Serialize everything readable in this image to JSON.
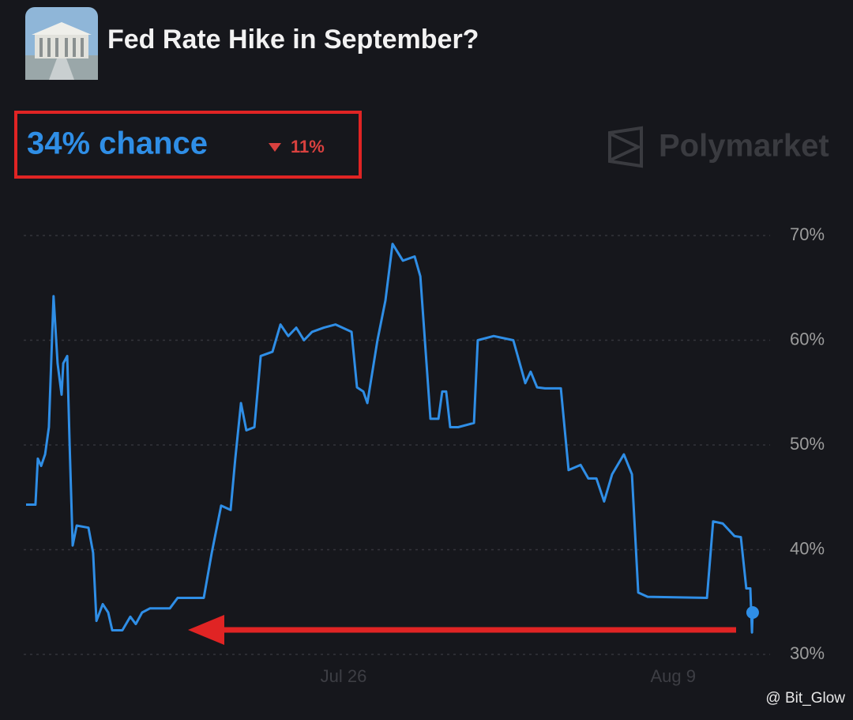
{
  "chart_data": {
    "type": "line",
    "title": "Fed Rate Hike in September?",
    "current_label": "34% chance",
    "change_label": "11%",
    "brand": "Polymarket",
    "watermark": "@ Bit_Glow",
    "color": "#2f8ee6",
    "grid": true,
    "x": [
      12.51,
      12.91,
      13.01,
      13.15,
      13.32,
      13.48,
      13.68,
      13.85,
      14.02,
      14.09,
      14.26,
      14.36,
      14.49,
      14.66,
      15.16,
      15.36,
      15.5,
      15.77,
      16.0,
      16.17,
      16.6,
      16.94,
      17.17,
      17.44,
      17.78,
      18.62,
      18.95,
      20.06,
      20.4,
      20.8,
      21.2,
      21.4,
      21.64,
      21.87,
      22.21,
      22.48,
      22.98,
      23.32,
      23.65,
      23.99,
      24.32,
      24.66,
      25.16,
      25.66,
      26.34,
      26.57,
      26.84,
      27.01,
      27.44,
      27.78,
      28.08,
      28.52,
      29.02,
      29.26,
      29.69,
      30.03,
      30.19,
      30.36,
      30.53,
      30.87,
      31.54,
      31.7,
      32.38,
      33.21,
      33.72,
      33.95,
      34.22,
      34.56,
      35.23,
      35.56,
      36.07,
      36.4,
      36.74,
      37.07,
      37.41,
      37.91,
      38.25,
      38.52,
      38.92,
      41.44,
      41.7,
      42.11,
      42.61,
      42.88,
      43.11,
      43.28,
      43.35,
      43.38
    ],
    "values": [
      44.3,
      44.3,
      48.7,
      48.0,
      49.1,
      51.7,
      64.2,
      57.8,
      54.8,
      57.8,
      58.5,
      50.2,
      40.4,
      42.3,
      42.1,
      39.7,
      33.2,
      34.8,
      34.0,
      32.3,
      32.3,
      33.6,
      32.9,
      34.0,
      34.4,
      34.4,
      35.4,
      35.4,
      39.7,
      44.2,
      43.8,
      48.7,
      54.0,
      51.4,
      51.7,
      58.5,
      58.9,
      61.5,
      60.4,
      61.2,
      60.0,
      60.8,
      61.2,
      61.5,
      60.8,
      55.5,
      55.1,
      54.0,
      60.0,
      63.8,
      69.2,
      67.6,
      68.0,
      66.1,
      52.5,
      52.5,
      55.1,
      55.1,
      51.7,
      51.7,
      52.1,
      60.0,
      60.4,
      60.0,
      55.9,
      57.0,
      55.5,
      55.4,
      55.4,
      47.6,
      48.1,
      46.8,
      46.8,
      44.6,
      47.2,
      49.1,
      47.2,
      35.9,
      35.5,
      35.4,
      42.7,
      42.5,
      41.3,
      41.2,
      36.3,
      36.3,
      32.1,
      34
    ],
    "xlim": [
      12.41,
      44.12
    ],
    "xticks": [
      {
        "value": 26,
        "label": "Jul 26"
      },
      {
        "value": 40,
        "label": "Aug 9"
      }
    ],
    "ylim": [
      30,
      70
    ],
    "yticks": [
      {
        "value": 30,
        "label": "30%"
      },
      {
        "value": 40,
        "label": "40%"
      },
      {
        "value": 50,
        "label": "50%"
      },
      {
        "value": 60,
        "label": "60%"
      },
      {
        "value": 70,
        "label": "70%"
      }
    ]
  }
}
